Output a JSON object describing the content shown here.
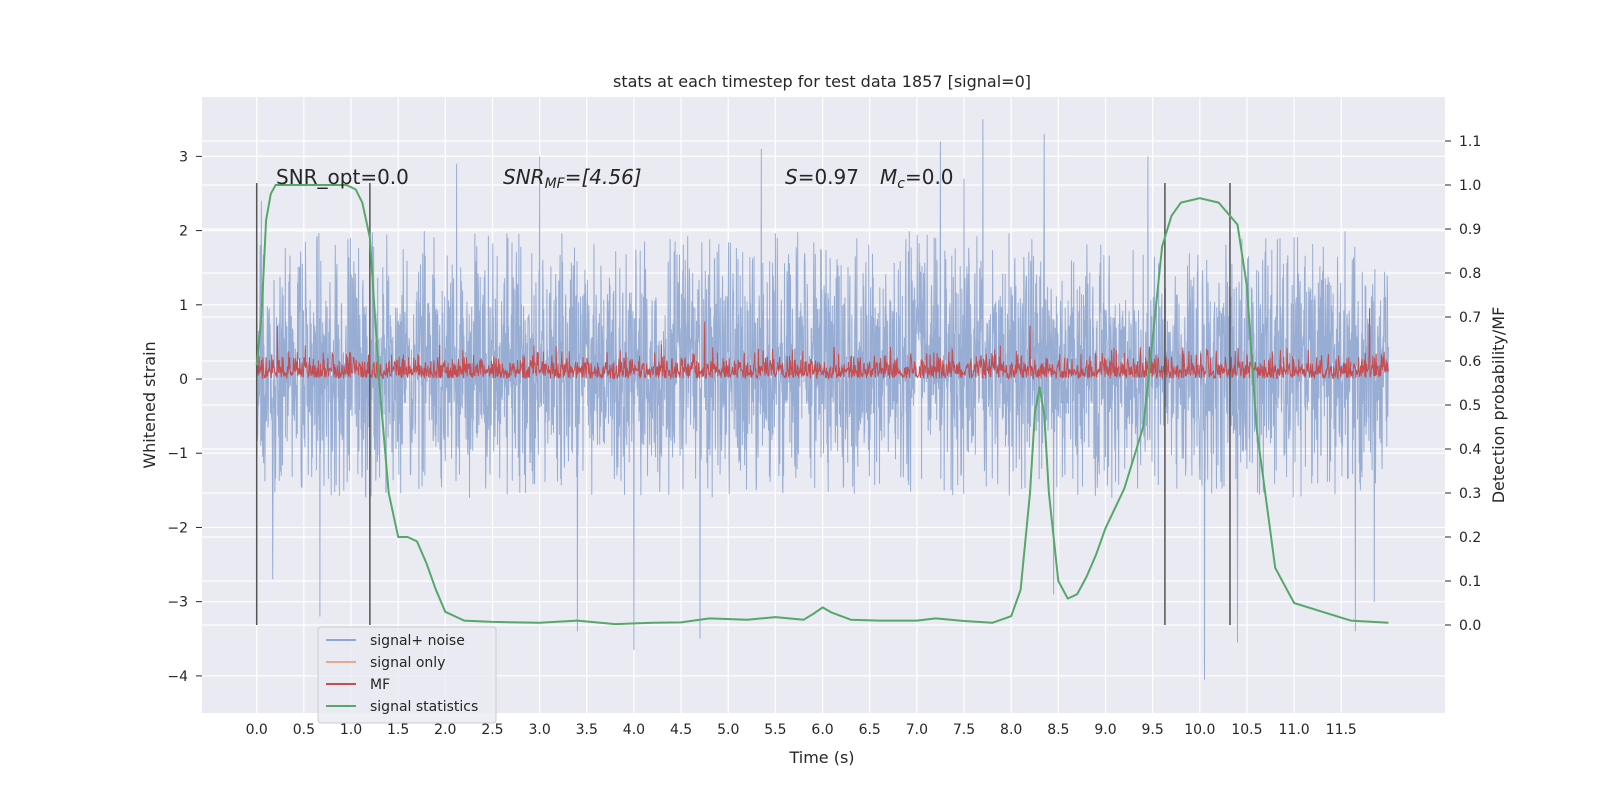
{
  "chart_data": {
    "type": "line",
    "title": "stats at each timestep for test data 1857 [signal=0]",
    "xlabel": "Time (s)",
    "ylabel": "Whitened strain",
    "ylabel_right": "Detection probability/MF",
    "xlim": [
      -0.58,
      12.6
    ],
    "ylim": [
      -4.5,
      3.8
    ],
    "ylim_right": [
      -0.2,
      1.2
    ],
    "xticks": [
      "0.0",
      "0.5",
      "1.0",
      "1.5",
      "2.0",
      "2.5",
      "3.0",
      "3.5",
      "4.0",
      "4.5",
      "5.0",
      "5.5",
      "6.0",
      "6.5",
      "7.0",
      "7.5",
      "8.0",
      "8.5",
      "9.0",
      "9.5",
      "10.0",
      "10.5",
      "11.0",
      "11.5"
    ],
    "yticks": [
      "3",
      "2",
      "1",
      "0",
      "−1",
      "−2",
      "−3",
      "−4"
    ],
    "yticks_right": [
      "0.0",
      "0.1",
      "0.2",
      "0.3",
      "0.4",
      "0.5",
      "0.6",
      "0.7",
      "0.8",
      "0.9",
      "1.0",
      "1.1"
    ],
    "grid": true,
    "legend_placement": "lower-left",
    "annotations": {
      "snr_opt": "SNR_opt=0.0",
      "snr_mf_base": "SNR",
      "snr_mf_sub": "MF",
      "snr_mf_value": "=[4.56]",
      "s_base": "S",
      "s_value": "=0.97",
      "mc_base": "M",
      "mc_sub": "c",
      "mc_value": "=0.0"
    },
    "vertical_markers_x": [
      0.0,
      1.2,
      9.63,
      10.32
    ],
    "series": [
      {
        "name": "signal+ noise",
        "color": "#8fa6cf",
        "axis": "left",
        "t_range": [
          0.0,
          12.0
        ],
        "envelope_typical": [
          -1.6,
          2.0
        ],
        "extremes": [
          {
            "x": 0.05,
            "y": 2.4
          },
          {
            "x": 0.17,
            "y": -2.7
          },
          {
            "x": 0.67,
            "y": -3.2
          },
          {
            "x": 2.12,
            "y": 2.9
          },
          {
            "x": 3.0,
            "y": 3.0
          },
          {
            "x": 3.4,
            "y": -3.4
          },
          {
            "x": 4.0,
            "y": -3.65
          },
          {
            "x": 4.7,
            "y": -3.5
          },
          {
            "x": 5.35,
            "y": 3.1
          },
          {
            "x": 7.25,
            "y": 3.2
          },
          {
            "x": 7.5,
            "y": 2.7
          },
          {
            "x": 7.7,
            "y": 3.5
          },
          {
            "x": 8.35,
            "y": 3.3
          },
          {
            "x": 8.45,
            "y": -2.9
          },
          {
            "x": 9.45,
            "y": 3.0
          },
          {
            "x": 10.05,
            "y": -4.05
          },
          {
            "x": 10.4,
            "y": -3.55
          },
          {
            "x": 11.65,
            "y": -3.4
          },
          {
            "x": 11.85,
            "y": -3.0
          }
        ]
      },
      {
        "name": "signal only",
        "color": "#e8a88a",
        "axis": "left",
        "values": []
      },
      {
        "name": "MF",
        "color": "#c44e52",
        "axis": "right",
        "t_range": [
          0.0,
          12.0
        ],
        "base": 0.56,
        "typical_max": 0.64,
        "spikes": [
          {
            "x": 0.22,
            "y": 0.68
          },
          {
            "x": 4.75,
            "y": 0.69
          },
          {
            "x": 8.2,
            "y": 0.68
          },
          {
            "x": 11.8,
            "y": 0.72
          }
        ]
      },
      {
        "name": "signal statistics",
        "color": "#55a868",
        "axis": "right",
        "x": [
          0.0,
          0.05,
          0.1,
          0.15,
          0.2,
          0.3,
          0.4,
          0.6,
          0.8,
          0.95,
          1.05,
          1.12,
          1.2,
          1.3,
          1.4,
          1.5,
          1.6,
          1.7,
          1.8,
          1.9,
          2.0,
          2.2,
          2.5,
          3.0,
          3.4,
          3.8,
          4.2,
          4.5,
          4.8,
          5.2,
          5.5,
          5.8,
          5.9,
          6.0,
          6.1,
          6.3,
          6.6,
          7.0,
          7.2,
          7.5,
          7.8,
          8.0,
          8.1,
          8.2,
          8.25,
          8.3,
          8.35,
          8.4,
          8.5,
          8.6,
          8.7,
          8.8,
          8.9,
          9.0,
          9.2,
          9.4,
          9.5,
          9.6,
          9.7,
          9.8,
          10.0,
          10.2,
          10.4,
          10.5,
          10.6,
          10.8,
          11.0,
          11.3,
          11.6,
          12.0
        ],
        "values": [
          0.59,
          0.7,
          0.92,
          0.98,
          1.0,
          1.0,
          1.0,
          1.0,
          1.0,
          1.0,
          0.99,
          0.96,
          0.88,
          0.55,
          0.3,
          0.2,
          0.2,
          0.19,
          0.14,
          0.08,
          0.03,
          0.01,
          0.007,
          0.005,
          0.01,
          0.002,
          0.005,
          0.006,
          0.015,
          0.012,
          0.018,
          0.012,
          0.025,
          0.04,
          0.028,
          0.012,
          0.01,
          0.01,
          0.015,
          0.009,
          0.005,
          0.02,
          0.08,
          0.3,
          0.48,
          0.54,
          0.48,
          0.3,
          0.1,
          0.06,
          0.07,
          0.11,
          0.16,
          0.22,
          0.31,
          0.45,
          0.65,
          0.86,
          0.93,
          0.96,
          0.97,
          0.96,
          0.91,
          0.77,
          0.45,
          0.13,
          0.05,
          0.03,
          0.01,
          0.005
        ]
      }
    ]
  }
}
